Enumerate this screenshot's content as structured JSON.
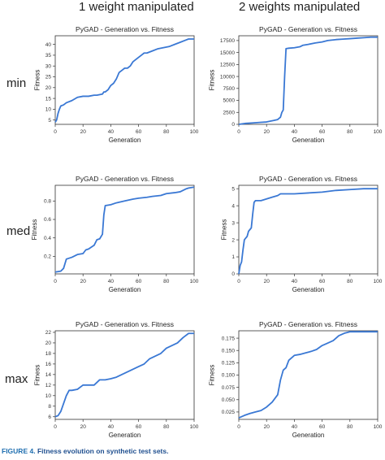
{
  "columns": [
    "1 weight manipulated",
    "2 weights manipulated"
  ],
  "rows": [
    "min",
    "med",
    "max"
  ],
  "caption": {
    "label": "FIGURE 4.",
    "text": "Fitness evolution on synthetic test sets."
  },
  "line_color": "#3a78d4",
  "chart_data": [
    {
      "type": "line",
      "title": "PyGAD - Generation vs. Fitness",
      "xlabel": "Generation",
      "ylabel": "Fitness",
      "xlim": [
        0,
        100
      ],
      "ylim": [
        3,
        44
      ],
      "xticks": [
        0,
        20,
        40,
        60,
        80,
        100
      ],
      "yticks": [
        5,
        10,
        15,
        20,
        25,
        30,
        35,
        40
      ],
      "ytick_labels": [
        "5",
        "10",
        "15",
        "20",
        "25",
        "30",
        "35",
        "40"
      ],
      "grid": false,
      "x": [
        0,
        1,
        2,
        3,
        4,
        6,
        8,
        12,
        16,
        20,
        24,
        28,
        30,
        34,
        35,
        36,
        38,
        40,
        42,
        44,
        46,
        48,
        50,
        52,
        54,
        56,
        60,
        62,
        64,
        66,
        70,
        74,
        78,
        82,
        86,
        90,
        94,
        96,
        100
      ],
      "y": [
        4,
        5,
        8,
        10,
        11.5,
        12,
        13,
        14,
        15.5,
        16,
        16,
        16.5,
        16.5,
        17,
        18,
        18,
        19,
        21,
        22,
        24,
        27,
        28,
        29,
        29,
        30,
        32,
        34,
        35,
        36,
        36,
        37,
        38,
        38.5,
        39,
        40,
        41,
        42,
        42.5,
        42.5
      ]
    },
    {
      "type": "line",
      "title": "PyGAD - Generation vs. Fitness",
      "xlabel": "Generation",
      "ylabel": "Fitness",
      "xlim": [
        0,
        100
      ],
      "ylim": [
        0,
        18500
      ],
      "xticks": [
        0,
        20,
        40,
        60,
        80,
        100
      ],
      "yticks": [
        0,
        2500,
        5000,
        7500,
        10000,
        12500,
        15000,
        17500
      ],
      "ytick_labels": [
        "0",
        "2500",
        "5000",
        "7500",
        "10000",
        "12500",
        "15000",
        "17500"
      ],
      "grid": false,
      "x": [
        0,
        5,
        10,
        15,
        20,
        25,
        28,
        30,
        31,
        32,
        33,
        34,
        36,
        40,
        44,
        46,
        50,
        55,
        60,
        64,
        70,
        75,
        80,
        85,
        90,
        95,
        100
      ],
      "y": [
        0,
        200,
        300,
        400,
        500,
        800,
        1000,
        1500,
        2500,
        3000,
        10000,
        15800,
        15900,
        16000,
        16200,
        16500,
        16700,
        17000,
        17200,
        17500,
        17700,
        17800,
        17900,
        18000,
        18100,
        18200,
        18200
      ]
    },
    {
      "type": "line",
      "title": "PyGAD - Generation vs. Fitness",
      "xlabel": "Generation",
      "ylabel": "Fitness",
      "xlim": [
        0,
        100
      ],
      "ylim": [
        0.01,
        0.97
      ],
      "xticks": [
        0,
        20,
        40,
        60,
        80,
        100
      ],
      "yticks": [
        0.2,
        0.4,
        0.6,
        0.8
      ],
      "ytick_labels": [
        "0.2",
        "0.4",
        "0.6",
        "0.8"
      ],
      "grid": false,
      "x": [
        0,
        4,
        6,
        8,
        10,
        12,
        16,
        20,
        22,
        24,
        28,
        30,
        32,
        34,
        35,
        36,
        40,
        44,
        50,
        56,
        60,
        66,
        70,
        76,
        80,
        86,
        90,
        94,
        96,
        100
      ],
      "y": [
        0.03,
        0.04,
        0.07,
        0.17,
        0.18,
        0.19,
        0.22,
        0.23,
        0.27,
        0.28,
        0.32,
        0.38,
        0.39,
        0.44,
        0.65,
        0.75,
        0.76,
        0.78,
        0.8,
        0.82,
        0.83,
        0.84,
        0.85,
        0.86,
        0.88,
        0.89,
        0.9,
        0.93,
        0.94,
        0.95
      ]
    },
    {
      "type": "line",
      "title": "PyGAD - Generation vs. Fitness",
      "xlabel": "Generation",
      "ylabel": "Fitness",
      "xlim": [
        0,
        100
      ],
      "ylim": [
        0,
        5.2
      ],
      "xticks": [
        0,
        20,
        40,
        60,
        80,
        100
      ],
      "yticks": [
        0,
        1,
        2,
        3,
        4,
        5
      ],
      "ytick_labels": [
        "0",
        "1",
        "2",
        "3",
        "4",
        "5"
      ],
      "grid": false,
      "x": [
        0,
        1,
        2,
        3,
        4,
        5,
        6,
        7,
        8,
        9,
        10,
        11,
        12,
        14,
        16,
        20,
        24,
        28,
        30,
        40,
        50,
        60,
        70,
        80,
        90,
        100
      ],
      "y": [
        0,
        0.5,
        0.7,
        1.4,
        2.0,
        2.1,
        2.2,
        2.5,
        2.6,
        2.7,
        3.5,
        4.2,
        4.3,
        4.3,
        4.3,
        4.4,
        4.5,
        4.6,
        4.7,
        4.7,
        4.75,
        4.8,
        4.9,
        4.95,
        5.0,
        5.0
      ]
    },
    {
      "type": "line",
      "title": "PyGAD - Generation vs. Fitness",
      "xlabel": "Generation",
      "ylabel": "Fitness",
      "xlim": [
        0,
        100
      ],
      "ylim": [
        5.5,
        22.3
      ],
      "xticks": [
        0,
        20,
        40,
        60,
        80,
        100
      ],
      "yticks": [
        6,
        8,
        10,
        12,
        14,
        16,
        18,
        20,
        22
      ],
      "ytick_labels": [
        "6",
        "8",
        "10",
        "12",
        "14",
        "16",
        "18",
        "20",
        "22"
      ],
      "grid": false,
      "x": [
        0,
        2,
        4,
        6,
        8,
        10,
        12,
        16,
        20,
        24,
        28,
        32,
        36,
        40,
        44,
        48,
        52,
        56,
        60,
        64,
        68,
        72,
        76,
        80,
        84,
        88,
        92,
        96,
        100
      ],
      "y": [
        6,
        6.2,
        7,
        8.5,
        10,
        11,
        11,
        11.2,
        12,
        12,
        12,
        13,
        13,
        13.2,
        13.5,
        14,
        14.5,
        15,
        15.5,
        16,
        17,
        17.5,
        18,
        19,
        19.5,
        20,
        21,
        21.8,
        21.8
      ]
    },
    {
      "type": "line",
      "title": "PyGAD - Generation vs. Fitness",
      "xlabel": "Generation",
      "ylabel": "Fitness",
      "xlim": [
        0,
        100
      ],
      "ylim": [
        0.01,
        0.19
      ],
      "xticks": [
        0,
        20,
        40,
        60,
        80,
        100
      ],
      "yticks": [
        0.025,
        0.05,
        0.075,
        0.1,
        0.125,
        0.15,
        0.175
      ],
      "ytick_labels": [
        "0.025",
        "0.050",
        "0.075",
        "0.100",
        "0.125",
        "0.150",
        "0.175"
      ],
      "grid": false,
      "x": [
        0,
        4,
        8,
        12,
        16,
        20,
        24,
        28,
        30,
        32,
        34,
        36,
        38,
        40,
        44,
        48,
        52,
        56,
        60,
        64,
        68,
        72,
        76,
        80,
        90,
        100
      ],
      "y": [
        0.013,
        0.018,
        0.022,
        0.025,
        0.028,
        0.035,
        0.045,
        0.06,
        0.09,
        0.11,
        0.115,
        0.13,
        0.135,
        0.14,
        0.142,
        0.145,
        0.148,
        0.152,
        0.16,
        0.165,
        0.17,
        0.18,
        0.185,
        0.188,
        0.188,
        0.188
      ]
    }
  ]
}
